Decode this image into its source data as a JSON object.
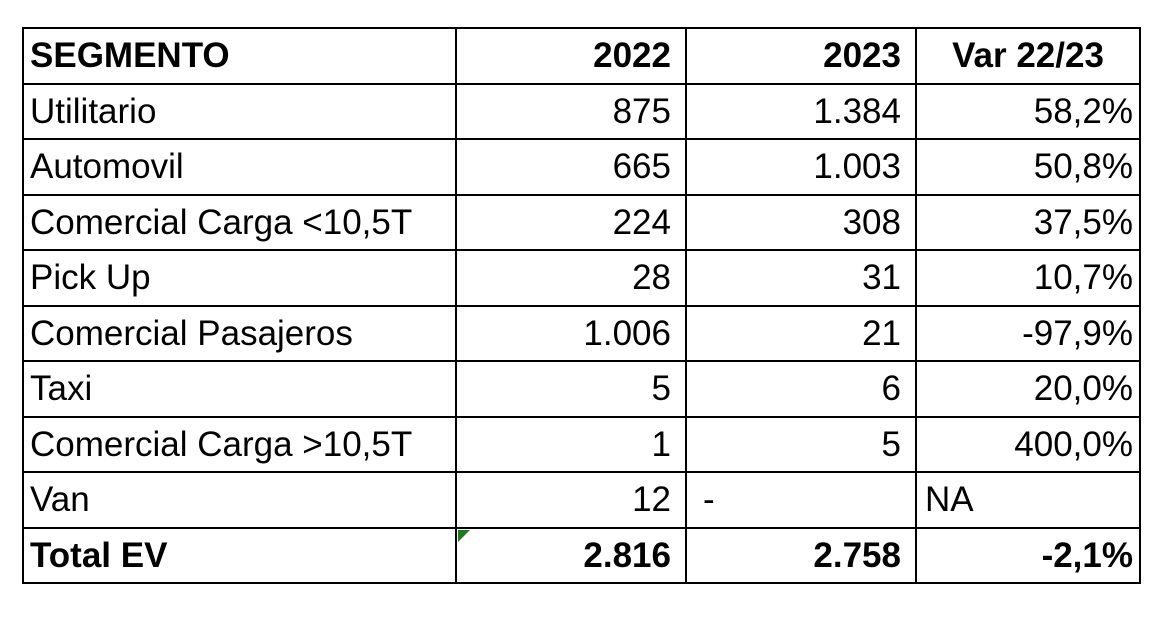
{
  "table": {
    "headers": {
      "segment": "SEGMENTO",
      "y2022": "2022",
      "y2023": "2023",
      "variation": "Var 22/23"
    },
    "rows": [
      {
        "segment": "Utilitario",
        "y2022": "875",
        "y2023": "1.384",
        "variation": "58,2%"
      },
      {
        "segment": "Automovil",
        "y2022": "665",
        "y2023": "1.003",
        "variation": "50,8%"
      },
      {
        "segment": "Comercial Carga <10,5T",
        "y2022": "224",
        "y2023": "308",
        "variation": "37,5%"
      },
      {
        "segment": "Pick Up",
        "y2022": "28",
        "y2023": "31",
        "variation": "10,7%"
      },
      {
        "segment": "Comercial Pasajeros",
        "y2022": "1.006",
        "y2023": "21",
        "variation": "-97,9%"
      },
      {
        "segment": "Taxi",
        "y2022": "5",
        "y2023": "6",
        "variation": "20,0%"
      },
      {
        "segment": "Comercial Carga >10,5T",
        "y2022": "1",
        "y2023": "5",
        "variation": "400,0%"
      },
      {
        "segment": "Van",
        "y2022": "12",
        "y2023": "-",
        "variation": "NA"
      }
    ],
    "total": {
      "segment": "Total EV",
      "y2022": "2.816",
      "y2023": "2.758",
      "variation": "-2,1%"
    }
  }
}
